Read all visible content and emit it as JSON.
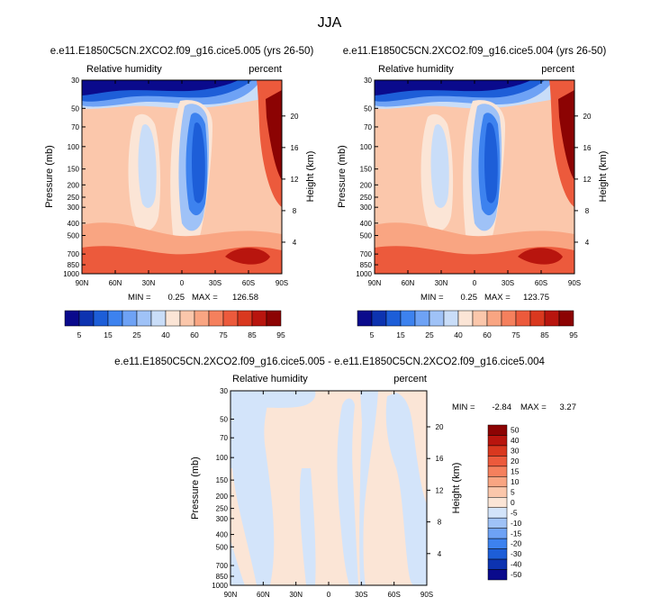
{
  "figure": {
    "title": "JJA"
  },
  "palette": {
    "rh": [
      "#0a0a8c",
      "#0d33b0",
      "#1d5ed8",
      "#3d82ef",
      "#6ea2f5",
      "#9fc2f7",
      "#c9ddf8",
      "#fbe5d6",
      "#fbc7ab",
      "#f9a582",
      "#f5805d",
      "#ec5a3c",
      "#d9381f",
      "#b8150e",
      "#8c0303"
    ],
    "diff": [
      "#0a0a8c",
      "#0d33b0",
      "#1d5ed8",
      "#3d82ef",
      "#6ea2f5",
      "#9fc2f7",
      "#d3e4fa",
      "#fbe5d6",
      "#fbc7ab",
      "#f9a582",
      "#f5805d",
      "#ec5a3c",
      "#d9381f",
      "#b8150e",
      "#8c0303"
    ]
  },
  "chart_data": [
    {
      "type": "heatmap",
      "title": "e.e11.E1850C5CN.2XCO2.f09_g16.cice5.005 (yrs 26-50)",
      "variable": "Relative humidity",
      "units": "percent",
      "xlabel": "",
      "ylabel": "Pressure (mb)",
      "y2label": "Height (km)",
      "x_ticks": [
        "90N",
        "60N",
        "30N",
        "0",
        "30S",
        "60S",
        "90S"
      ],
      "y_ticks": [
        "30",
        "50",
        "70",
        "100",
        "150",
        "200",
        "250",
        "300",
        "400",
        "500",
        "700",
        "850",
        "1000"
      ],
      "y2_ticks": [
        "20",
        "16",
        "12",
        "8",
        "4"
      ],
      "ylim": [
        1000,
        30
      ],
      "yscale": "log",
      "stats": {
        "min_label": "MIN =",
        "min": "0.25",
        "max_label": "MAX =",
        "max": "126.58"
      },
      "colorbar": {
        "labels": [
          "5",
          "15",
          "25",
          "40",
          "60",
          "75",
          "85",
          "95"
        ]
      }
    },
    {
      "type": "heatmap",
      "title": "e.e11.E1850C5CN.2XCO2.f09_g16.cice5.004 (yrs 26-50)",
      "variable": "Relative humidity",
      "units": "percent",
      "xlabel": "",
      "ylabel": "Pressure (mb)",
      "y2label": "Height (km)",
      "x_ticks": [
        "90N",
        "60N",
        "30N",
        "0",
        "30S",
        "60S",
        "90S"
      ],
      "y_ticks": [
        "30",
        "50",
        "70",
        "100",
        "150",
        "200",
        "250",
        "300",
        "400",
        "500",
        "700",
        "850",
        "1000"
      ],
      "y2_ticks": [
        "20",
        "16",
        "12",
        "8",
        "4"
      ],
      "ylim": [
        1000,
        30
      ],
      "yscale": "log",
      "stats": {
        "min_label": "MIN =",
        "min": "0.25",
        "max_label": "MAX =",
        "max": "123.75"
      },
      "colorbar": {
        "labels": [
          "5",
          "15",
          "25",
          "40",
          "60",
          "75",
          "85",
          "95"
        ]
      }
    },
    {
      "type": "heatmap",
      "title": "e.e11.E1850C5CN.2XCO2.f09_g16.cice5.005 - e.e11.E1850C5CN.2XCO2.f09_g16.cice5.004",
      "variable": "Relative humidity",
      "units": "percent",
      "xlabel": "",
      "ylabel": "Pressure (mb)",
      "y2label": "Height (km)",
      "x_ticks": [
        "90N",
        "60N",
        "30N",
        "0",
        "30S",
        "60S",
        "90S"
      ],
      "y_ticks": [
        "30",
        "50",
        "70",
        "100",
        "150",
        "200",
        "250",
        "300",
        "400",
        "500",
        "700",
        "850",
        "1000"
      ],
      "y2_ticks": [
        "20",
        "16",
        "12",
        "8",
        "4"
      ],
      "ylim": [
        1000,
        30
      ],
      "yscale": "log",
      "stats": {
        "min_label": "MIN =",
        "min": "-2.84",
        "max_label": "MAX =",
        "max": "3.27"
      },
      "colorbar": {
        "labels": [
          "50",
          "40",
          "30",
          "20",
          "15",
          "10",
          "5",
          "0",
          "-5",
          "-10",
          "-15",
          "-20",
          "-30",
          "-40",
          "-50"
        ]
      }
    }
  ]
}
